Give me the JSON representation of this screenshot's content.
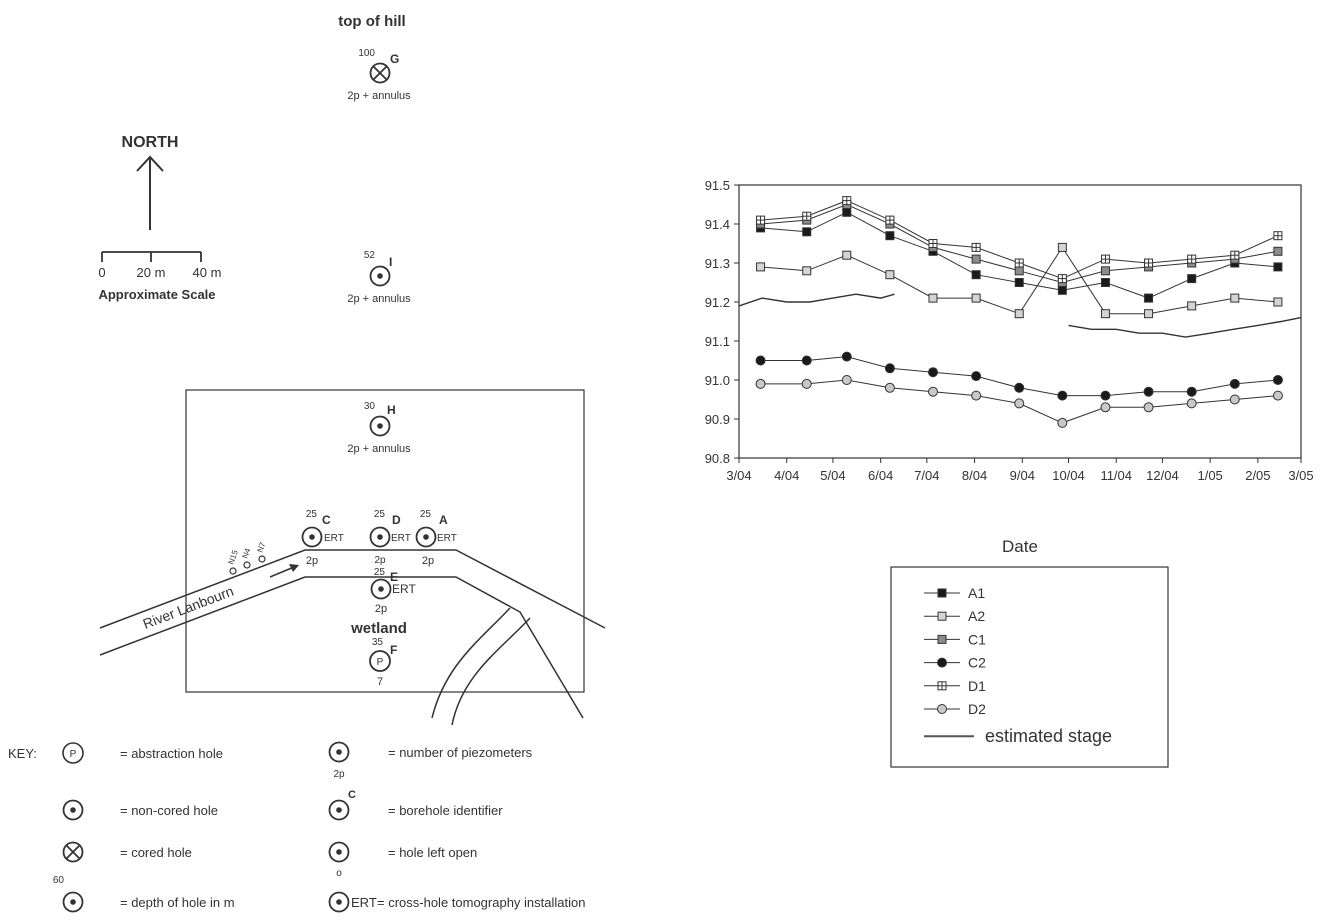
{
  "map": {
    "top_label": "top of hill",
    "north_label": "NORTH",
    "scale_ticks": [
      "0",
      "20 m",
      "40 m"
    ],
    "scale_label": "Approximate Scale",
    "river_label": "River Lanbourn",
    "wetland_label": "wetland",
    "small_holes": [
      "N15",
      "N4",
      "N7"
    ],
    "boreholes": [
      {
        "id": "G",
        "depth": "100",
        "type": "cored",
        "note": "2p + annulus"
      },
      {
        "id": "I",
        "depth": "52",
        "type": "non-cored",
        "note": "2p + annulus"
      },
      {
        "id": "H",
        "depth": "30",
        "type": "non-cored",
        "note": "2p + annulus"
      },
      {
        "id": "C",
        "depth": "25",
        "type": "non-cored",
        "note": "2p",
        "ert": "ERT"
      },
      {
        "id": "D",
        "depth": "25",
        "type": "non-cored",
        "note": "2p",
        "ert": "ERT"
      },
      {
        "id": "A",
        "depth": "25",
        "type": "non-cored",
        "note": "2p",
        "ert": "ERT"
      },
      {
        "id": "E",
        "depth": "25",
        "type": "non-cored",
        "note": "2p",
        "ert": "ERT"
      },
      {
        "id": "F",
        "depth": "35",
        "type": "abstraction",
        "note": "7",
        "symbol": "P"
      }
    ]
  },
  "key": {
    "title": "KEY:",
    "p_letter": "P",
    "abstraction": "= abstraction hole",
    "non_cored": "= non-cored hole",
    "cored": "= cored hole",
    "depth_example": "60",
    "depth": "= depth of hole in m",
    "piezo_example": "2p",
    "piezometers": "= number of piezometers",
    "identifier_example": "C",
    "identifier": "= borehole identifier",
    "open_example": "o",
    "open": "= hole left open",
    "ert_example": "ERT",
    "ert": "= cross-hole tomography installation"
  },
  "chart_data": {
    "type": "line",
    "xlabel": "Date",
    "ylabel": "",
    "x_ticks": [
      "3/04",
      "4/04",
      "5/04",
      "6/04",
      "7/04",
      "8/04",
      "9/04",
      "10/04",
      "11/04",
      "12/04",
      "1/05",
      "2/05",
      "3/05"
    ],
    "ylim": [
      90.8,
      91.5
    ],
    "y_ticks": [
      "91.5",
      "91.4",
      "91.3",
      "91.2",
      "91.1",
      "91.0",
      "90.9",
      "90.8"
    ],
    "x": [
      "2004-03-15",
      "2004-04-14",
      "2004-05-10",
      "2004-06-07",
      "2004-07-05",
      "2004-08-02",
      "2004-08-30",
      "2004-09-27",
      "2004-10-25",
      "2004-11-22",
      "2004-12-20",
      "2005-01-17",
      "2005-02-14"
    ],
    "series": [
      {
        "name": "A1",
        "marker": "square",
        "fill": "#1a1a1a",
        "values": [
          91.39,
          91.38,
          91.43,
          91.37,
          91.33,
          91.27,
          91.25,
          91.23,
          91.25,
          91.21,
          91.26,
          91.3,
          91.29
        ]
      },
      {
        "name": "A2",
        "marker": "square",
        "fill": "#d4d4d4",
        "values": [
          91.29,
          91.28,
          91.32,
          91.27,
          91.21,
          91.21,
          91.17,
          91.34,
          91.17,
          91.17,
          91.19,
          91.21,
          91.2
        ]
      },
      {
        "name": "C1",
        "marker": "square",
        "fill": "#8c8c8c",
        "values": [
          91.4,
          91.41,
          91.45,
          91.4,
          91.34,
          91.31,
          91.28,
          91.25,
          91.28,
          91.29,
          91.3,
          91.31,
          91.33
        ]
      },
      {
        "name": "C2",
        "marker": "circle",
        "fill": "#1a1a1a",
        "values": [
          91.05,
          91.05,
          91.06,
          91.03,
          91.02,
          91.01,
          90.98,
          90.96,
          90.96,
          90.97,
          90.97,
          90.99,
          91.0
        ]
      },
      {
        "name": "D1",
        "marker": "crossed-square",
        "fill": "#ffffff",
        "values": [
          91.41,
          91.42,
          91.46,
          91.41,
          91.35,
          91.34,
          91.3,
          91.26,
          91.31,
          91.3,
          91.31,
          91.32,
          91.37
        ]
      },
      {
        "name": "D2",
        "marker": "circle",
        "fill": "#c8c8c8",
        "values": [
          90.99,
          90.99,
          91.0,
          90.98,
          90.97,
          90.96,
          90.94,
          90.89,
          90.93,
          90.93,
          90.94,
          90.95,
          90.96
        ]
      }
    ],
    "stage": {
      "name": "estimated stage",
      "segments": [
        {
          "x": [
            "2004-03-01",
            "2004-03-16",
            "2004-04-01",
            "2004-04-16",
            "2004-05-01",
            "2004-05-16",
            "2004-06-01",
            "2004-06-10"
          ],
          "values": [
            91.19,
            91.21,
            91.2,
            91.2,
            91.21,
            91.22,
            91.21,
            91.22
          ]
        },
        {
          "x": [
            "2004-10-01",
            "2004-10-16",
            "2004-11-01",
            "2004-11-16",
            "2004-12-01",
            "2004-12-16",
            "2005-01-01",
            "2005-01-16",
            "2005-02-01",
            "2005-02-16",
            "2005-03-01"
          ],
          "values": [
            91.14,
            91.13,
            91.13,
            91.12,
            91.12,
            91.11,
            91.12,
            91.13,
            91.14,
            91.15,
            91.16
          ]
        }
      ]
    }
  }
}
